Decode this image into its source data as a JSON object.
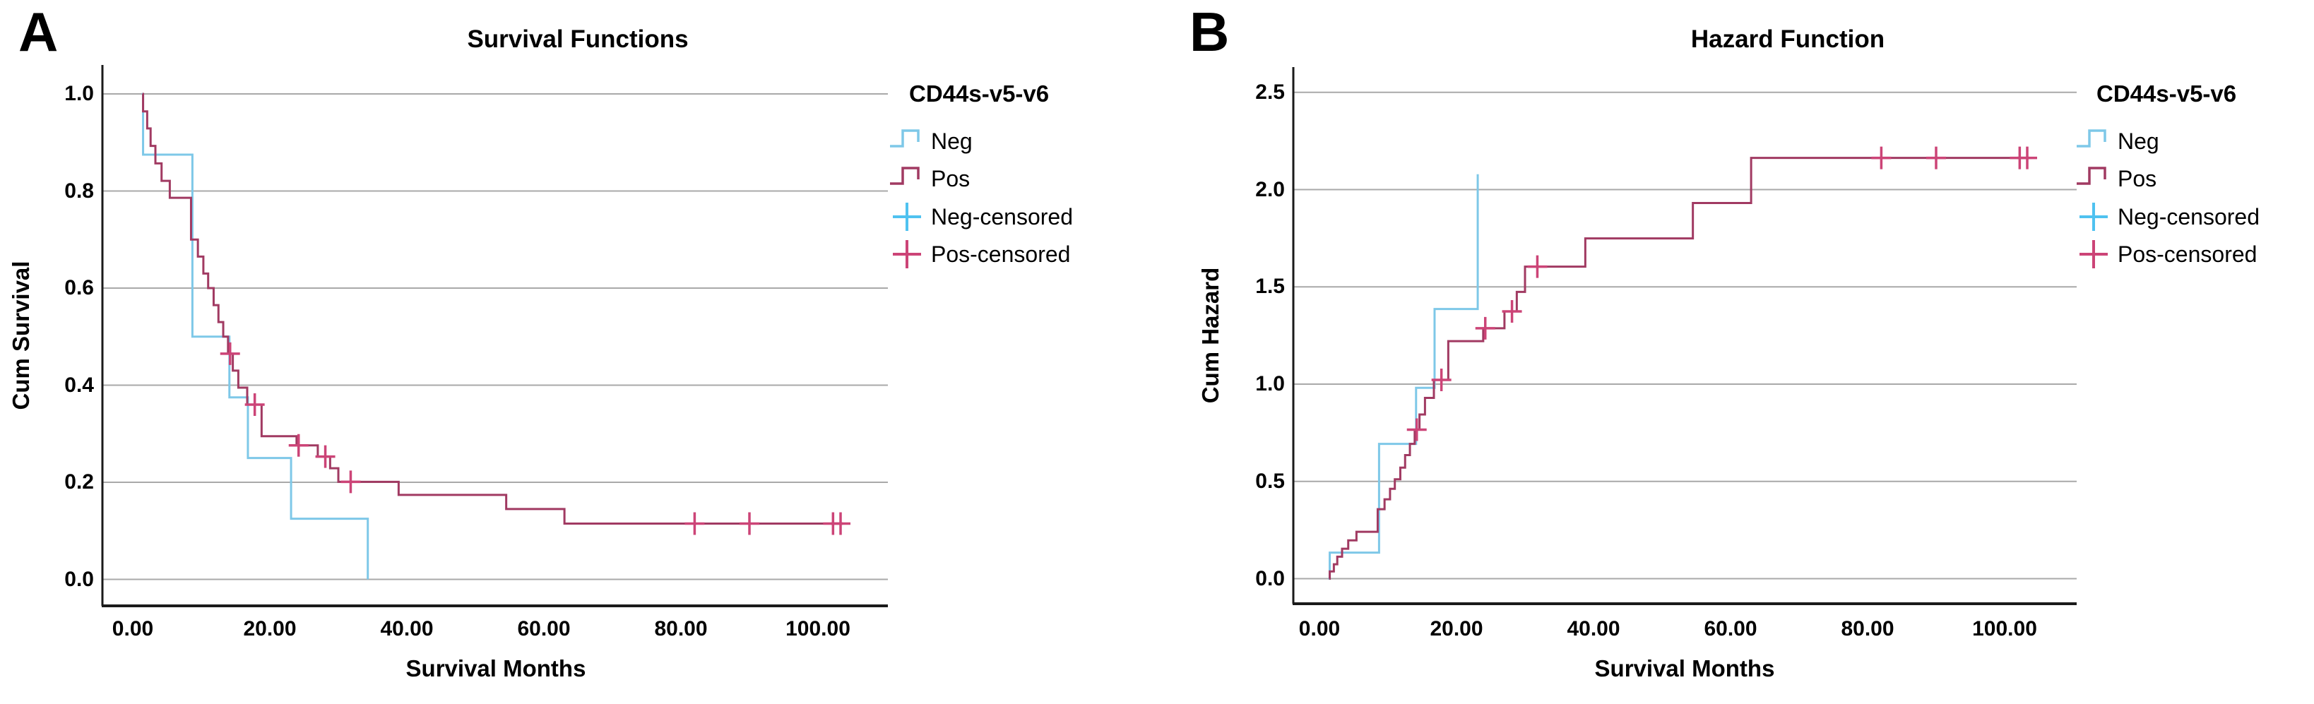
{
  "figure": {
    "background": "#FFFFFF",
    "description": "Two SPSS-style Kaplan-Meier plots: cumulative survival and cumulative hazard by CD44s-v5-v6 status"
  },
  "colors": {
    "neg": "#7EC8E8",
    "neg_censored": "#4FC2F0",
    "pos": "#A13A62",
    "pos_censored": "#CC4477",
    "grid": "#A9A9A9",
    "axis": "#1A1A1A",
    "text": "#000000"
  },
  "panels": [
    {
      "letter": "A",
      "title": "Survival Functions",
      "x_label": "Survival Months",
      "y_label": "Cum Survival",
      "x_tick_labels": [
        "0.00",
        "20.00",
        "40.00",
        "60.00",
        "80.00",
        "100.00"
      ],
      "y_tick_labels": [
        "1.0",
        "0.8",
        "0.6",
        "0.4",
        "0.2",
        "0.0"
      ],
      "legend": {
        "title": "CD44s-v5-v6",
        "items": [
          {
            "label": "Neg",
            "symbol": "step",
            "color": "neg"
          },
          {
            "label": "Pos",
            "symbol": "step",
            "color": "pos"
          },
          {
            "label": "Neg-censored",
            "symbol": "cross",
            "color": "neg_censored"
          },
          {
            "label": "Pos-censored",
            "symbol": "cross",
            "color": "pos_censored"
          }
        ]
      }
    },
    {
      "letter": "B",
      "title": "Hazard Function",
      "x_label": "Survival Months",
      "y_label": "Cum Hazard",
      "x_tick_labels": [
        "0.00",
        "20.00",
        "40.00",
        "60.00",
        "80.00",
        "100.00"
      ],
      "y_tick_labels": [
        "2.5",
        "2.0",
        "1.5",
        "1.0",
        "0.5",
        "0.0"
      ],
      "legend": {
        "title": "CD44s-v5-v6",
        "items": [
          {
            "label": "Neg",
            "symbol": "step",
            "color": "neg"
          },
          {
            "label": "Pos",
            "symbol": "step",
            "color": "pos"
          },
          {
            "label": "Neg-censored",
            "symbol": "cross",
            "color": "neg_censored"
          },
          {
            "label": "Pos-censored",
            "symbol": "cross",
            "color": "pos_censored"
          }
        ]
      }
    }
  ],
  "chart_data": [
    {
      "type": "line",
      "subtype": "kaplan-meier-step",
      "title": "Survival Functions",
      "xlabel": "Survival Months",
      "ylabel": "Cum Survival",
      "xlim": [
        -4.4,
        110.2
      ],
      "ylim": [
        0,
        1.06
      ],
      "x_ticks": [
        0,
        20,
        40,
        60,
        80,
        100
      ],
      "y_ticks": [
        1.0,
        0.8,
        0.6,
        0.4,
        0.2,
        0.0
      ],
      "grid": "horizontal",
      "legend_position": "right",
      "series": [
        {
          "name": "Neg",
          "color": "neg",
          "start": [
            1.3,
            1.0
          ],
          "events": [
            [
              1.5,
              0.875
            ],
            [
              8.7,
              0.5
            ],
            [
              14.1,
              0.375
            ],
            [
              16.8,
              0.25
            ],
            [
              23.1,
              0.125
            ],
            [
              34.3,
              0.0
            ]
          ],
          "end_x": 34.3,
          "censored": []
        },
        {
          "name": "Pos",
          "color": "pos",
          "start": [
            1.4,
            1.0
          ],
          "events": [
            [
              1.5,
              0.964
            ],
            [
              2.1,
              0.929
            ],
            [
              2.6,
              0.893
            ],
            [
              3.3,
              0.857
            ],
            [
              4.2,
              0.821
            ],
            [
              5.4,
              0.786
            ],
            [
              8.5,
              0.7
            ],
            [
              9.5,
              0.665
            ],
            [
              10.3,
              0.63
            ],
            [
              11.0,
              0.6
            ],
            [
              11.8,
              0.565
            ],
            [
              12.5,
              0.53
            ],
            [
              13.2,
              0.5
            ],
            [
              13.9,
              0.465
            ],
            [
              14.6,
              0.43
            ],
            [
              15.4,
              0.395
            ],
            [
              16.7,
              0.36
            ],
            [
              18.8,
              0.295
            ],
            [
              23.9,
              0.276
            ],
            [
              27.0,
              0.253
            ],
            [
              28.8,
              0.229
            ],
            [
              30.0,
              0.201
            ],
            [
              38.8,
              0.174
            ],
            [
              54.5,
              0.145
            ],
            [
              63.0,
              0.115
            ]
          ],
          "end_x": 104,
          "censored": [
            [
              14.2,
              0.465
            ],
            [
              17.8,
              0.36
            ],
            [
              24.2,
              0.276
            ],
            [
              28.1,
              0.253
            ],
            [
              31.8,
              0.201
            ],
            [
              82.0,
              0.115
            ],
            [
              90.0,
              0.115
            ],
            [
              102.2,
              0.115
            ],
            [
              103.3,
              0.115
            ]
          ]
        }
      ]
    },
    {
      "type": "line",
      "subtype": "cumulative-hazard-step",
      "title": "Hazard Function",
      "xlabel": "Survival Months",
      "ylabel": "Cum Hazard",
      "xlim": [
        -3.8,
        110.5
      ],
      "ylim": [
        0,
        2.63
      ],
      "x_ticks": [
        0,
        20,
        40,
        60,
        80,
        100
      ],
      "y_ticks": [
        2.5,
        2.0,
        1.5,
        1.0,
        0.5,
        0.0
      ],
      "grid": "horizontal",
      "legend_position": "right",
      "series": [
        {
          "name": "Neg",
          "color": "neg",
          "start": [
            1.3,
            0.0
          ],
          "events": [
            [
              1.5,
              0.134
            ],
            [
              8.7,
              0.693
            ],
            [
              14.1,
              0.981
            ],
            [
              16.8,
              1.386
            ],
            [
              23.1,
              2.079
            ]
          ],
          "end_x": 23.1,
          "censored": []
        },
        {
          "name": "Pos",
          "color": "pos",
          "start": [
            1.4,
            0.0
          ],
          "events": [
            [
              1.5,
              0.037
            ],
            [
              2.1,
              0.074
            ],
            [
              2.6,
              0.113
            ],
            [
              3.3,
              0.154
            ],
            [
              4.2,
              0.197
            ],
            [
              5.4,
              0.241
            ],
            [
              8.5,
              0.357
            ],
            [
              9.5,
              0.408
            ],
            [
              10.3,
              0.462
            ],
            [
              11.0,
              0.511
            ],
            [
              11.8,
              0.571
            ],
            [
              12.5,
              0.635
            ],
            [
              13.2,
              0.693
            ],
            [
              13.9,
              0.766
            ],
            [
              14.6,
              0.844
            ],
            [
              15.4,
              0.929
            ],
            [
              16.7,
              1.022
            ],
            [
              18.8,
              1.221
            ],
            [
              23.9,
              1.287
            ],
            [
              27.0,
              1.374
            ],
            [
              28.8,
              1.474
            ],
            [
              30.0,
              1.604
            ],
            [
              38.8,
              1.749
            ],
            [
              54.5,
              1.931
            ],
            [
              63.0,
              2.163
            ]
          ],
          "end_x": 104,
          "censored": [
            [
              14.2,
              0.766
            ],
            [
              17.8,
              1.022
            ],
            [
              24.2,
              1.287
            ],
            [
              28.1,
              1.374
            ],
            [
              31.8,
              1.604
            ],
            [
              82.0,
              2.163
            ],
            [
              90.0,
              2.163
            ],
            [
              102.2,
              2.163
            ],
            [
              103.3,
              2.163
            ]
          ]
        }
      ]
    }
  ]
}
